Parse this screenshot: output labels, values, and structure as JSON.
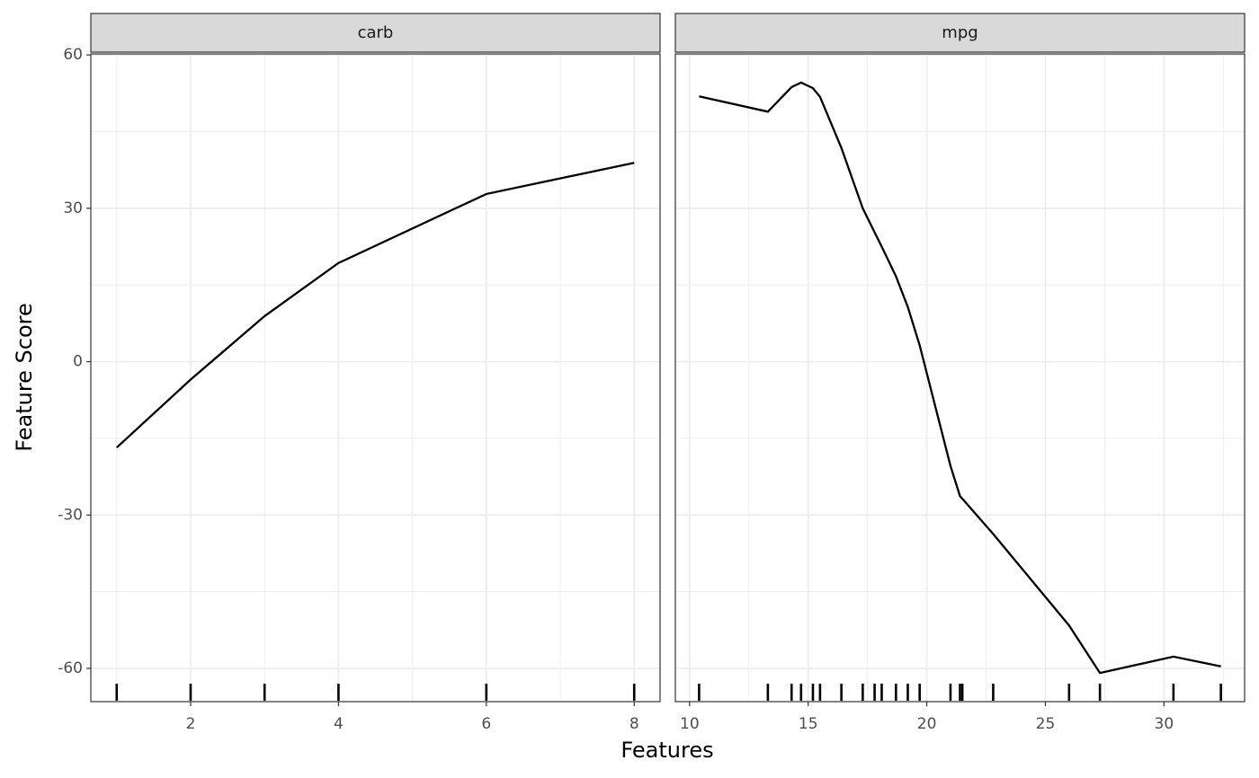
{
  "chart_data": [
    {
      "type": "line",
      "title": "carb",
      "color": "#000000",
      "rug": true,
      "grid": true,
      "x": [
        1,
        2,
        3,
        4,
        6,
        8
      ],
      "values": [
        -16.8,
        -3.5,
        8.9,
        19.3,
        32.8,
        38.9
      ],
      "xlim": [
        0.65,
        8.35
      ],
      "ylim": [
        -66.5,
        60.2
      ],
      "xticks": [
        2,
        4,
        6,
        8
      ],
      "yticks": [
        -60,
        -30,
        0,
        30,
        60
      ]
    },
    {
      "type": "line",
      "title": "mpg",
      "color": "#000000",
      "rug": true,
      "grid": true,
      "x": [
        10.4,
        13.3,
        14.3,
        14.7,
        15.2,
        15.5,
        16.4,
        17.3,
        17.8,
        18.1,
        18.7,
        19.2,
        19.7,
        21.0,
        21.4,
        21.5,
        22.8,
        26.0,
        27.3,
        30.4,
        32.4
      ],
      "values": [
        51.9,
        48.9,
        53.7,
        54.6,
        53.5,
        51.8,
        41.8,
        30.0,
        25.3,
        22.5,
        16.7,
        10.7,
        3.2,
        -20.4,
        -26.3,
        -26.8,
        -33.7,
        -51.6,
        -60.9,
        -57.7,
        -59.6
      ],
      "xlim": [
        9.4,
        33.4
      ],
      "ylim": [
        -66.5,
        60.2
      ],
      "xticks": [
        10,
        15,
        20,
        25,
        30
      ],
      "yticks": [
        -60,
        -30,
        0,
        30,
        60
      ]
    }
  ],
  "xlabel": "Features",
  "ylabel": "Feature Score"
}
